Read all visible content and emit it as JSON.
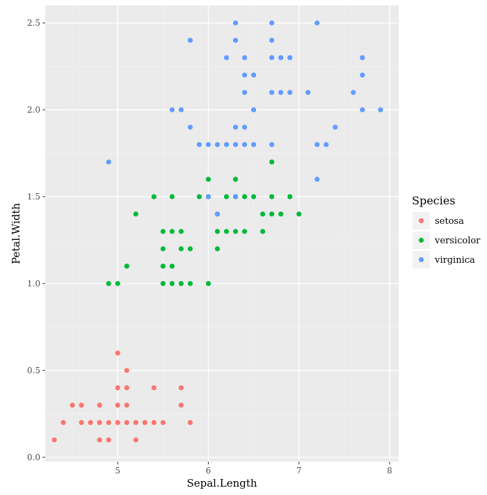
{
  "chart_data": {
    "type": "scatter",
    "title": "",
    "xlabel": "Sepal.Length",
    "ylabel": "Petal.Width",
    "xlim": [
      4.2,
      8.1
    ],
    "ylim": [
      -0.025,
      2.6
    ],
    "x_ticks": [
      5,
      6,
      7,
      8
    ],
    "x_tick_labels": [
      "5",
      "6",
      "7",
      "8"
    ],
    "y_ticks": [
      0.0,
      0.5,
      1.0,
      1.5,
      2.0,
      2.5
    ],
    "y_tick_labels": [
      "0.0",
      "0.5",
      "1.0",
      "1.5",
      "2.0",
      "2.5"
    ],
    "grid": true,
    "background": "#ebebeb",
    "legend": {
      "title": "Species",
      "position": "right"
    },
    "series": [
      {
        "name": "setosa",
        "color": "#F8766D",
        "points": [
          [
            4.3,
            0.1
          ],
          [
            4.4,
            0.2
          ],
          [
            4.5,
            0.3
          ],
          [
            4.6,
            0.2
          ],
          [
            4.6,
            0.3
          ],
          [
            4.7,
            0.2
          ],
          [
            4.8,
            0.1
          ],
          [
            4.8,
            0.2
          ],
          [
            4.8,
            0.3
          ],
          [
            4.9,
            0.1
          ],
          [
            4.9,
            0.2
          ],
          [
            5.0,
            0.2
          ],
          [
            5.0,
            0.3
          ],
          [
            5.0,
            0.4
          ],
          [
            5.0,
            0.6
          ],
          [
            5.1,
            0.2
          ],
          [
            5.1,
            0.3
          ],
          [
            5.1,
            0.4
          ],
          [
            5.1,
            0.5
          ],
          [
            5.2,
            0.1
          ],
          [
            5.2,
            0.2
          ],
          [
            5.3,
            0.2
          ],
          [
            5.4,
            0.2
          ],
          [
            5.4,
            0.4
          ],
          [
            5.5,
            0.2
          ],
          [
            5.7,
            0.3
          ],
          [
            5.7,
            0.4
          ],
          [
            5.8,
            0.2
          ]
        ]
      },
      {
        "name": "versicolor",
        "color": "#00BA38",
        "points": [
          [
            4.9,
            1.0
          ],
          [
            5.0,
            1.0
          ],
          [
            5.1,
            1.1
          ],
          [
            5.2,
            1.4
          ],
          [
            5.4,
            1.5
          ],
          [
            5.5,
            1.0
          ],
          [
            5.5,
            1.1
          ],
          [
            5.5,
            1.2
          ],
          [
            5.5,
            1.3
          ],
          [
            5.6,
            1.0
          ],
          [
            5.6,
            1.1
          ],
          [
            5.6,
            1.3
          ],
          [
            5.6,
            1.5
          ],
          [
            5.7,
            1.0
          ],
          [
            5.7,
            1.2
          ],
          [
            5.7,
            1.3
          ],
          [
            5.8,
            1.0
          ],
          [
            5.8,
            1.2
          ],
          [
            5.9,
            1.5
          ],
          [
            6.0,
            1.0
          ],
          [
            6.0,
            1.5
          ],
          [
            6.0,
            1.6
          ],
          [
            6.1,
            1.2
          ],
          [
            6.1,
            1.3
          ],
          [
            6.1,
            1.4
          ],
          [
            6.2,
            1.3
          ],
          [
            6.2,
            1.5
          ],
          [
            6.3,
            1.3
          ],
          [
            6.3,
            1.5
          ],
          [
            6.3,
            1.6
          ],
          [
            6.4,
            1.3
          ],
          [
            6.4,
            1.5
          ],
          [
            6.5,
            1.5
          ],
          [
            6.6,
            1.3
          ],
          [
            6.6,
            1.4
          ],
          [
            6.7,
            1.4
          ],
          [
            6.7,
            1.5
          ],
          [
            6.7,
            1.7
          ],
          [
            6.8,
            1.4
          ],
          [
            6.9,
            1.5
          ],
          [
            7.0,
            1.4
          ]
        ]
      },
      {
        "name": "virginica",
        "color": "#619CFF",
        "points": [
          [
            4.9,
            1.7
          ],
          [
            5.6,
            2.0
          ],
          [
            5.7,
            2.0
          ],
          [
            5.8,
            1.9
          ],
          [
            5.8,
            2.4
          ],
          [
            5.9,
            1.8
          ],
          [
            6.0,
            1.5
          ],
          [
            6.0,
            1.8
          ],
          [
            6.1,
            1.4
          ],
          [
            6.1,
            1.8
          ],
          [
            6.2,
            1.8
          ],
          [
            6.2,
            2.3
          ],
          [
            6.3,
            1.5
          ],
          [
            6.3,
            1.8
          ],
          [
            6.3,
            1.9
          ],
          [
            6.3,
            2.4
          ],
          [
            6.3,
            2.5
          ],
          [
            6.4,
            1.8
          ],
          [
            6.4,
            1.9
          ],
          [
            6.4,
            2.1
          ],
          [
            6.4,
            2.2
          ],
          [
            6.4,
            2.3
          ],
          [
            6.5,
            1.8
          ],
          [
            6.5,
            2.0
          ],
          [
            6.5,
            2.2
          ],
          [
            6.7,
            1.8
          ],
          [
            6.7,
            2.1
          ],
          [
            6.7,
            2.3
          ],
          [
            6.7,
            2.4
          ],
          [
            6.7,
            2.5
          ],
          [
            6.8,
            2.1
          ],
          [
            6.8,
            2.3
          ],
          [
            6.9,
            2.1
          ],
          [
            6.9,
            2.3
          ],
          [
            7.1,
            2.1
          ],
          [
            7.2,
            1.6
          ],
          [
            7.2,
            1.8
          ],
          [
            7.2,
            2.5
          ],
          [
            7.3,
            1.8
          ],
          [
            7.4,
            1.9
          ],
          [
            7.6,
            2.1
          ],
          [
            7.7,
            2.0
          ],
          [
            7.7,
            2.2
          ],
          [
            7.7,
            2.3
          ],
          [
            7.9,
            2.0
          ]
        ]
      }
    ]
  }
}
